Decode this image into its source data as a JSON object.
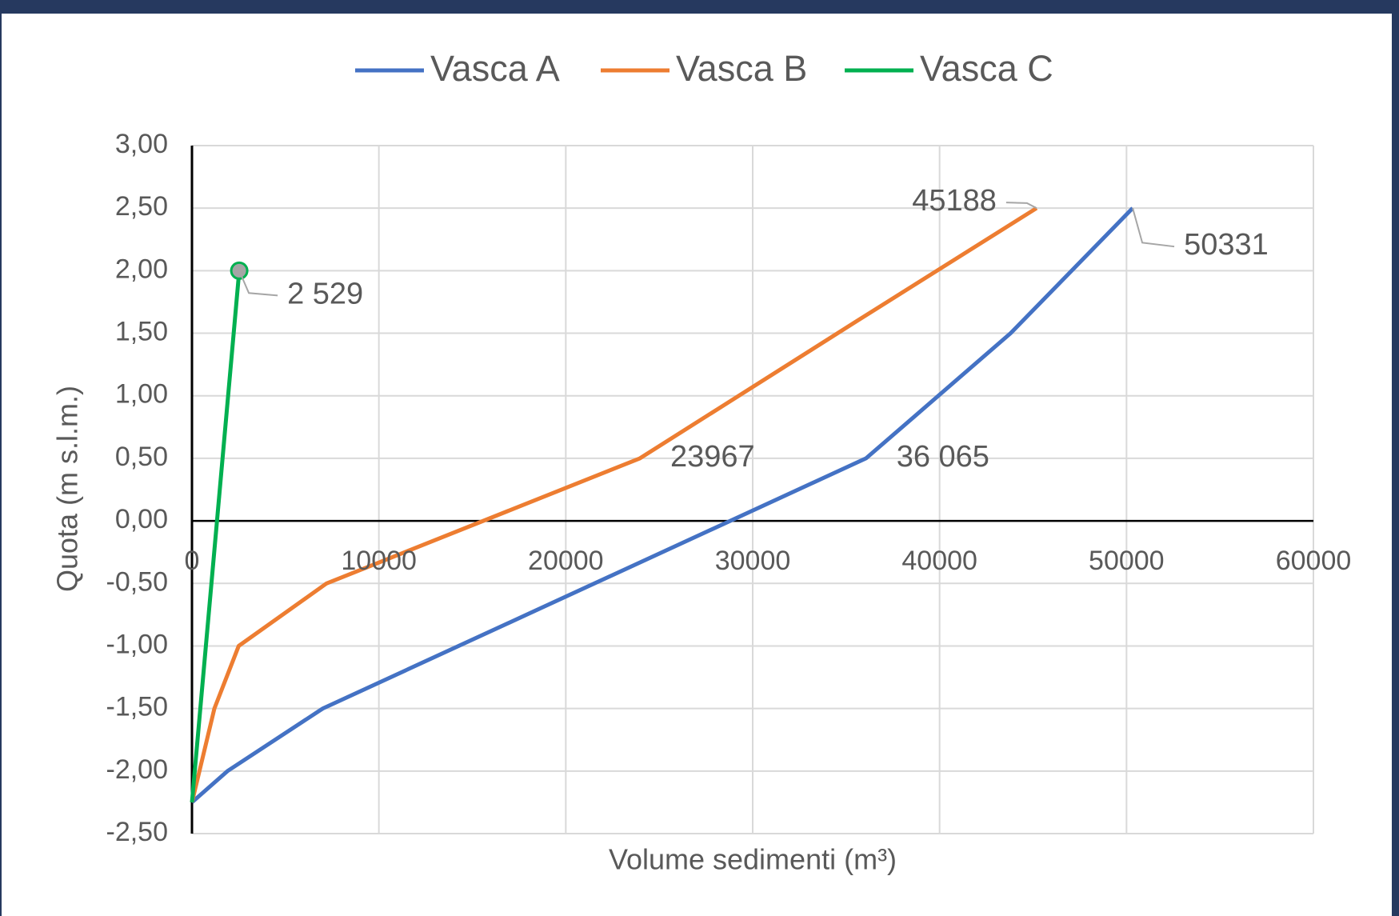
{
  "chart_data": {
    "type": "line",
    "x_label": "Volume sedimenti (m³)",
    "y_label": "Quota (m s.l.m.)",
    "xlim": [
      0,
      60000
    ],
    "xticks": [
      0,
      10000,
      20000,
      30000,
      40000,
      50000,
      60000
    ],
    "ylim": [
      -2.5,
      3
    ],
    "yticks": [
      {
        "value": -2.5,
        "label": "-2,50"
      },
      {
        "value": -2,
        "label": "-2,00"
      },
      {
        "value": -1.5,
        "label": "-1,50"
      },
      {
        "value": -1,
        "label": "-1,00"
      },
      {
        "value": -0.5,
        "label": "-0,50"
      },
      {
        "value": 0,
        "label": "0,00"
      },
      {
        "value": 0.5,
        "label": "0,50"
      },
      {
        "value": 1,
        "label": "1,00"
      },
      {
        "value": 1.5,
        "label": "1,50"
      },
      {
        "value": 2,
        "label": "2,00"
      },
      {
        "value": 2.5,
        "label": "2,50"
      },
      {
        "value": 3,
        "label": "3,00"
      }
    ],
    "grid": true,
    "legend": "top",
    "series": [
      {
        "name": "Vasca A",
        "color": "#4472c4",
        "x": [
          0,
          1900,
          7000,
          36065,
          43800,
          50331
        ],
        "values": [
          -2.25,
          -2,
          -1.5,
          0.5,
          1.5,
          2.5
        ],
        "x_labels": [
          null,
          null,
          null,
          "36 065",
          null,
          "50331"
        ]
      },
      {
        "name": "Vasca B",
        "color": "#ed7d31",
        "x": [
          0,
          1200,
          2500,
          7200,
          23967,
          35600,
          45188
        ],
        "values": [
          -2.25,
          -1.5,
          -1,
          -0.5,
          0.5,
          1.6,
          2.5
        ],
        "x_labels": [
          null,
          null,
          null,
          null,
          "23967",
          null,
          "45188"
        ]
      },
      {
        "name": "Vasca C",
        "color": "#00b050",
        "x": [
          0,
          2529
        ],
        "values": [
          -2.25,
          2
        ],
        "x_labels": [
          null,
          "2 529"
        ]
      }
    ]
  }
}
